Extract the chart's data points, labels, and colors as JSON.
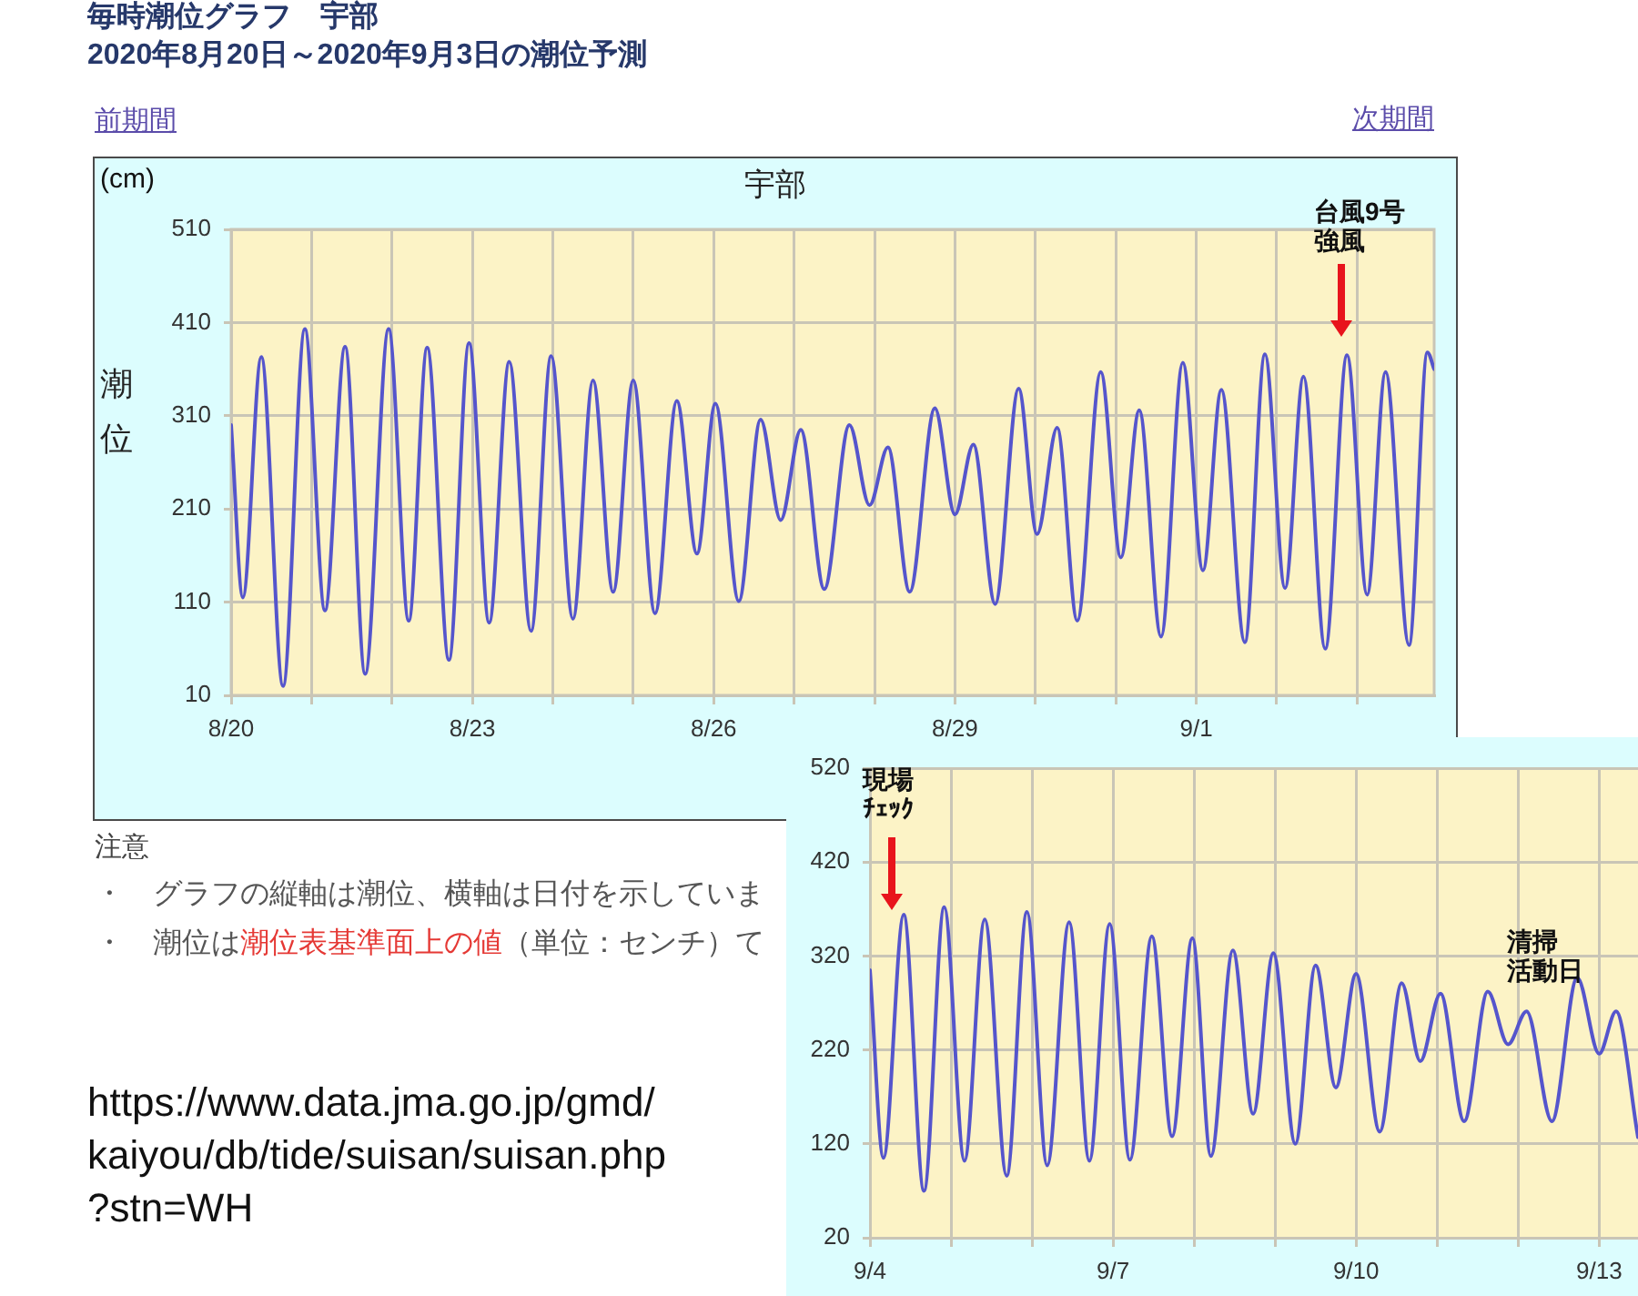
{
  "chart_data": [
    {
      "type": "line",
      "title": "宇部",
      "ylabel": "潮位",
      "color": "#5555cc",
      "x": [
        "2020-08-20T00:00",
        "2020-08-20T03:30",
        "2020-08-20T09:00",
        "2020-08-20T15:30",
        "2020-08-20T22:00",
        "2020-08-21T04:00",
        "2020-08-21T10:00",
        "2020-08-21T16:00",
        "2020-08-21T23:00",
        "2020-08-22T05:00",
        "2020-08-22T10:30",
        "2020-08-22T17:00",
        "2020-08-22T23:00",
        "2020-08-23T05:00",
        "2020-08-23T11:00",
        "2020-08-23T17:30",
        "2020-08-23T23:30",
        "2020-08-24T06:00",
        "2020-08-24T12:00",
        "2020-08-24T18:00",
        "2020-08-25T00:00",
        "2020-08-25T06:30",
        "2020-08-25T13:00",
        "2020-08-25T19:00",
        "2020-08-26T00:30",
        "2020-08-26T07:30",
        "2020-08-26T14:00",
        "2020-08-26T20:00",
        "2020-08-27T02:00",
        "2020-08-27T09:00",
        "2020-08-27T16:30",
        "2020-08-27T22:30",
        "2020-08-28T04:00",
        "2020-08-28T10:30",
        "2020-08-28T18:00",
        "2020-08-29T00:00",
        "2020-08-29T05:30",
        "2020-08-29T12:00",
        "2020-08-29T19:00",
        "2020-08-30T00:30",
        "2020-08-30T06:30",
        "2020-08-30T12:30",
        "2020-08-30T19:30",
        "2020-08-31T01:30",
        "2020-08-31T07:00",
        "2020-08-31T13:30",
        "2020-08-31T20:00",
        "2020-09-01T02:00",
        "2020-09-01T07:30",
        "2020-09-01T14:30",
        "2020-09-01T20:30",
        "2020-09-02T02:30",
        "2020-09-02T08:00",
        "2020-09-02T14:30",
        "2020-09-02T21:00",
        "2020-09-03T03:00",
        "2020-09-03T08:30",
        "2020-09-03T15:30",
        "2020-09-03T21:00",
        "2020-09-03T23:00"
      ],
      "values": [
        300,
        115,
        373,
        20,
        403,
        101,
        384,
        33,
        403,
        90,
        383,
        48,
        388,
        88,
        368,
        79,
        374,
        92,
        348,
        121,
        348,
        98,
        326,
        162,
        323,
        111,
        306,
        198,
        295,
        124,
        300,
        214,
        276,
        121,
        318,
        204,
        279,
        108,
        339,
        183,
        297,
        90,
        357,
        158,
        316,
        73,
        367,
        144,
        338,
        67,
        376,
        125,
        352,
        60,
        375,
        118,
        357,
        64,
        378,
        360
      ],
      "xlim": [
        "2020-08-20T00:00",
        "2020-09-03T23:00"
      ],
      "xticks": [
        {
          "value": "2020-08-20",
          "label": "8/20"
        },
        {
          "value": "2020-08-21",
          "label": null
        },
        {
          "value": "2020-08-22",
          "label": null
        },
        {
          "value": "2020-08-23",
          "label": "8/23"
        },
        {
          "value": "2020-08-24",
          "label": null
        },
        {
          "value": "2020-08-25",
          "label": null
        },
        {
          "value": "2020-08-26",
          "label": "8/26"
        },
        {
          "value": "2020-08-27",
          "label": null
        },
        {
          "value": "2020-08-28",
          "label": null
        },
        {
          "value": "2020-08-29",
          "label": "8/29"
        },
        {
          "value": "2020-08-30",
          "label": null
        },
        {
          "value": "2020-08-31",
          "label": null
        },
        {
          "value": "2020-09-01",
          "label": "9/1"
        },
        {
          "value": "2020-09-02",
          "label": null
        },
        {
          "value": "2020-09-03",
          "label": null
        }
      ],
      "ylim": [
        10,
        510
      ],
      "yticks": [
        10,
        110,
        210,
        310,
        410,
        510
      ],
      "grid": true,
      "annotations": [
        "毎時潮位グラフ　宇部",
        "2020年8月20日～2020年9月3日の潮位予測",
        "前期間",
        "次期間",
        "(cm)",
        "注意",
        "・　グラフの縦軸は潮位、横軸は日付を示していま",
        "・　潮位は",
        "潮位表基準面上の値",
        "（単位：センチ）て",
        "https://www.data.jma.go.jp/gmd/\nkaiyou/db/tide/suisan/suisan.php\n?stn=WH",
        "台風9号強風"
      ]
    },
    {
      "type": "line",
      "color": "#5555cc",
      "x": [
        "2020-09-04T00:00",
        "2020-09-04T04:00",
        "2020-09-04T10:00",
        "2020-09-04T16:00",
        "2020-09-04T22:00",
        "2020-09-05T04:00",
        "2020-09-05T10:00",
        "2020-09-05T16:30",
        "2020-09-05T22:30",
        "2020-09-06T04:30",
        "2020-09-06T11:00",
        "2020-09-06T17:00",
        "2020-09-06T23:00",
        "2020-09-07T05:00",
        "2020-09-07T11:30",
        "2020-09-07T17:30",
        "2020-09-07T23:30",
        "2020-09-08T05:00",
        "2020-09-08T11:30",
        "2020-09-08T17:30",
        "2020-09-08T23:30",
        "2020-09-09T06:00",
        "2020-09-09T12:00",
        "2020-09-09T18:00",
        "2020-09-10T00:00",
        "2020-09-10T07:00",
        "2020-09-10T13:30",
        "2020-09-10T19:00",
        "2020-09-11T01:00",
        "2020-09-11T08:00",
        "2020-09-11T15:00",
        "2020-09-11T21:00",
        "2020-09-12T02:30",
        "2020-09-12T10:00",
        "2020-09-12T17:30",
        "2020-09-13T00:00",
        "2020-09-13T05:00",
        "2020-09-13T11:30"
      ],
      "values": [
        305,
        105,
        364,
        70,
        372,
        102,
        359,
        86,
        367,
        97,
        356,
        102,
        354,
        103,
        341,
        128,
        339,
        107,
        326,
        152,
        323,
        120,
        310,
        180,
        301,
        133,
        291,
        208,
        280,
        144,
        282,
        226,
        261,
        144,
        297,
        216,
        261,
        127
      ],
      "xlim": [
        "2020-09-04T00:00",
        "2020-09-13T11:30"
      ],
      "xticks": [
        {
          "value": "2020-09-04",
          "label": "9/4"
        },
        {
          "value": "2020-09-05",
          "label": null
        },
        {
          "value": "2020-09-06",
          "label": null
        },
        {
          "value": "2020-09-07",
          "label": "9/7"
        },
        {
          "value": "2020-09-08",
          "label": null
        },
        {
          "value": "2020-09-09",
          "label": null
        },
        {
          "value": "2020-09-10",
          "label": "9/10"
        },
        {
          "value": "2020-09-11",
          "label": null
        },
        {
          "value": "2020-09-12",
          "label": null
        },
        {
          "value": "2020-09-13",
          "label": "9/13"
        }
      ],
      "ylim": [
        20,
        520
      ],
      "yticks": [
        20,
        120,
        220,
        320,
        420,
        520
      ],
      "grid": true,
      "annotations": [
        "現場ﾁｪｯｸ",
        "清掃",
        "活動日"
      ]
    }
  ]
}
